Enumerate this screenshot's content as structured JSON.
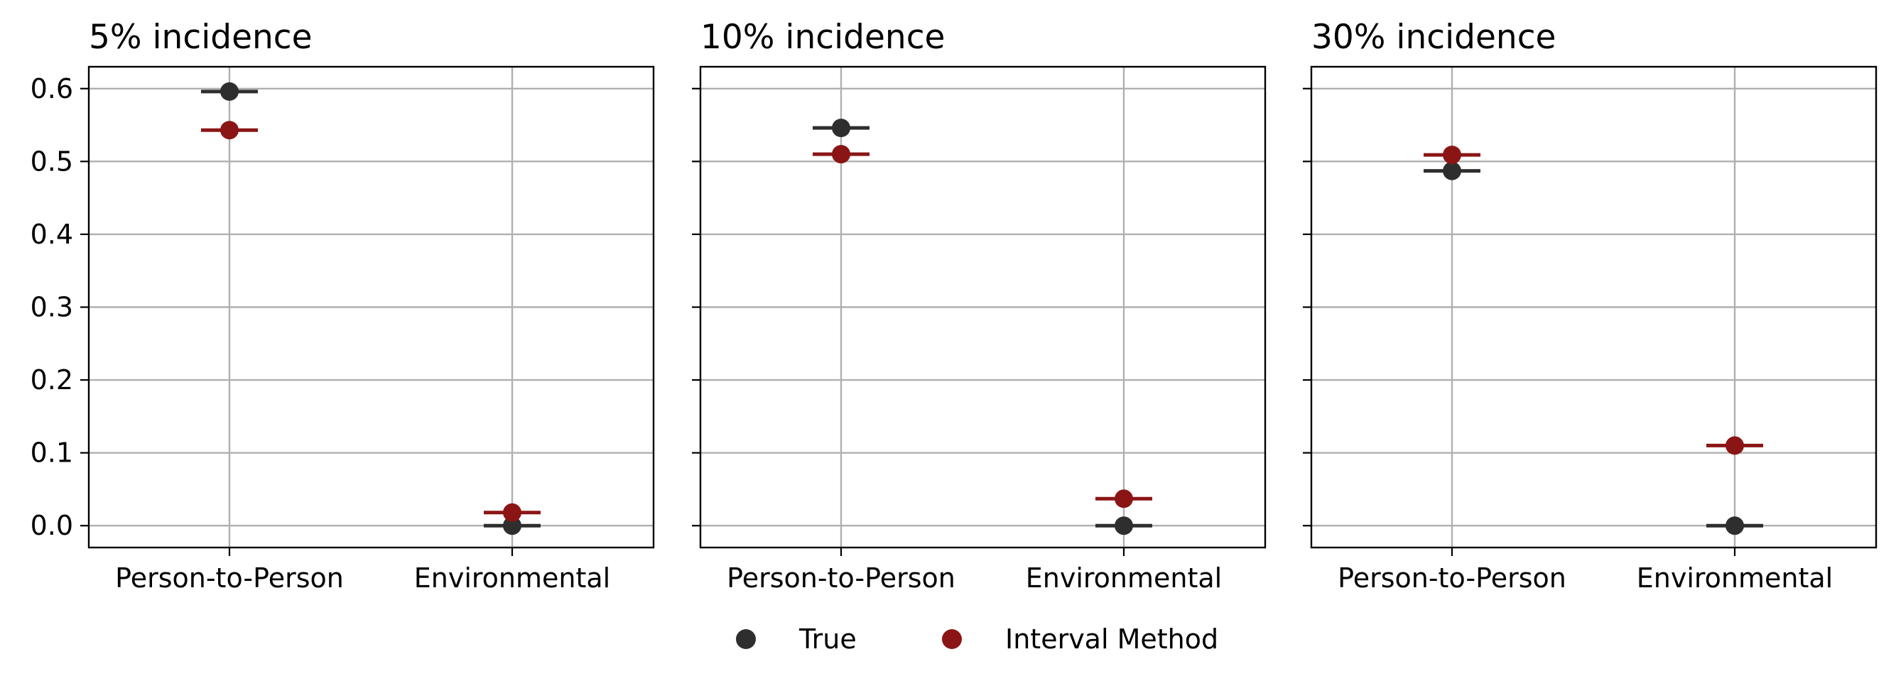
{
  "colors": {
    "true_series": "#2e2e2e",
    "method_series": "#8b1515",
    "grid": "#b0b0b0",
    "frame": "#000000"
  },
  "chart_data": {
    "type": "scatter",
    "shared_y": true,
    "ylim": [
      -0.03,
      0.63
    ],
    "yticks": [
      "0.0",
      "0.1",
      "0.2",
      "0.3",
      "0.4",
      "0.5",
      "0.6"
    ],
    "categories": [
      "Person-to-Person",
      "Environmental"
    ],
    "grid": true,
    "legend": {
      "placement": "bottom-center",
      "entries": [
        "True",
        "Interval Method"
      ]
    },
    "panels": [
      {
        "title": "5% incidence",
        "series": [
          {
            "name": "True",
            "values": [
              0.596,
              0.0
            ]
          },
          {
            "name": "Interval Method",
            "values": [
              0.543,
              0.018
            ]
          }
        ]
      },
      {
        "title": "10% incidence",
        "series": [
          {
            "name": "True",
            "values": [
              0.546,
              0.0
            ]
          },
          {
            "name": "Interval Method",
            "values": [
              0.51,
              0.037
            ]
          }
        ]
      },
      {
        "title": "30% incidence",
        "series": [
          {
            "name": "True",
            "values": [
              0.487,
              0.0
            ]
          },
          {
            "name": "Interval Method",
            "values": [
              0.509,
              0.11
            ]
          }
        ]
      }
    ]
  }
}
